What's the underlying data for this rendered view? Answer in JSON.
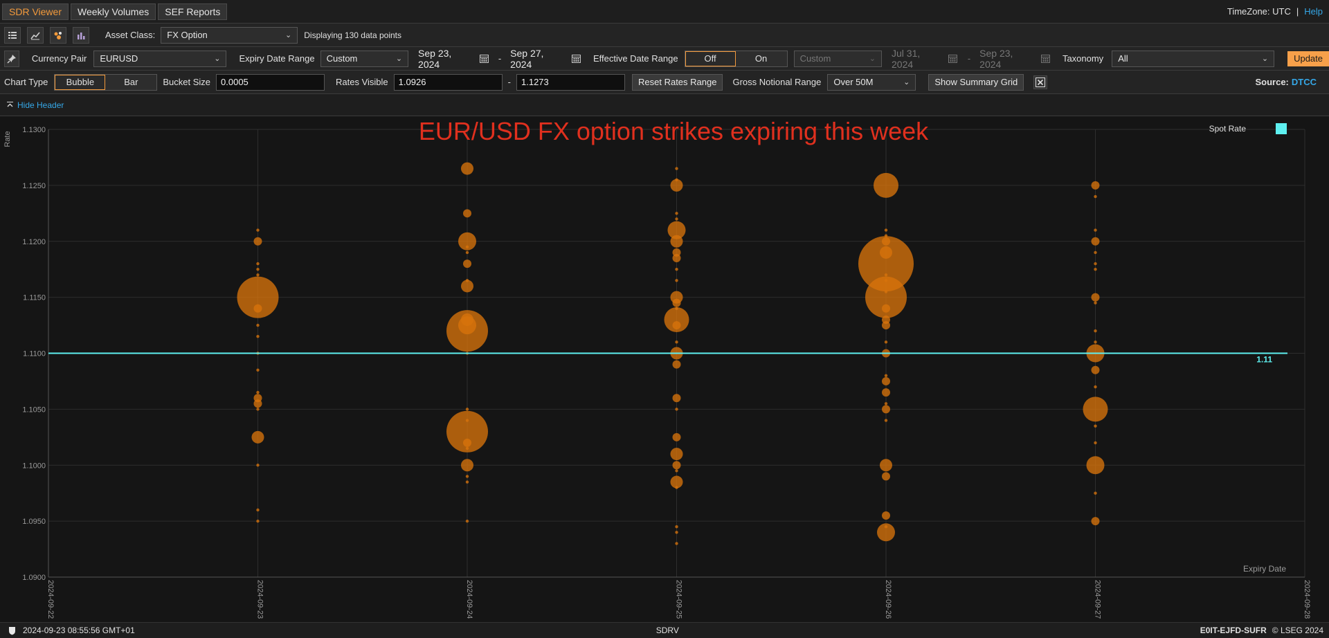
{
  "nav": {
    "tabs": [
      {
        "label": "SDR Viewer",
        "active": true
      },
      {
        "label": "Weekly Volumes",
        "active": false
      },
      {
        "label": "SEF Reports",
        "active": false
      }
    ],
    "timezone": "TimeZone: UTC",
    "separator": "|",
    "help": "Help"
  },
  "toolbar": {
    "asset_class_label": "Asset Class:",
    "asset_class_value": "FX Option",
    "displaying": "Displaying 130 data points",
    "icons": [
      "grid-icon",
      "line-chart-icon",
      "bubble-chart-icon",
      "bar-chart-icon"
    ]
  },
  "filters": {
    "currency_pair_label": "Currency Pair",
    "currency_pair_value": "EURUSD",
    "expiry_range_label": "Expiry Date Range",
    "expiry_range_value": "Custom",
    "expiry_from": "Sep 23, 2024",
    "expiry_to": "Sep 27, 2024",
    "dash": "-",
    "effective_label": "Effective Date Range",
    "effective_off": "Off",
    "effective_on": "On",
    "effective_range_value": "Custom",
    "effective_from": "Jul 31, 2024",
    "effective_to": "Sep 23, 2024",
    "taxonomy_label": "Taxonomy",
    "taxonomy_value": "All",
    "update": "Update"
  },
  "options": {
    "chart_type_label": "Chart Type",
    "bubble": "Bubble",
    "bar": "Bar",
    "bucket_size_label": "Bucket Size",
    "bucket_size_value": "0.0005",
    "rates_visible_label": "Rates Visible",
    "rates_from": "1.0926",
    "rates_to": "1.1273",
    "dash": "-",
    "reset": "Reset Rates Range",
    "gross_notional_label": "Gross Notional Range",
    "gross_notional_value": "Over 50M",
    "summary": "Show Summary Grid",
    "source_label": "Source:",
    "source_value": "DTCC"
  },
  "header_toggle": {
    "label": "Hide Header"
  },
  "footer": {
    "timestamp": "2024-09-23 08:55:56 GMT+01",
    "center": "SDRV",
    "code": "E0IT-EJFD-SUFR",
    "copyright": "© LSEG 2024"
  },
  "colors": {
    "accent": "#f39a3c",
    "bubble": "#d7730c",
    "spot": "#5ef0f0",
    "title": "#e0301e",
    "link": "#35a8e8"
  },
  "chart_data": {
    "type": "scatter",
    "title": "EUR/USD FX option strikes expiring this week",
    "ylabel": "Rate",
    "xlabel": "Expiry Date",
    "ylim": [
      1.09,
      1.13
    ],
    "yticks": [
      "1.0900",
      "1.0950",
      "1.1000",
      "1.1050",
      "1.1100",
      "1.1150",
      "1.1200",
      "1.1250",
      "1.1300"
    ],
    "xticks": [
      "2024-09-22",
      "2024-09-23",
      "2024-09-24",
      "2024-09-25",
      "2024-09-26",
      "2024-09-27",
      "2024-09-28"
    ],
    "grid": true,
    "legend": {
      "label": "Spot Rate",
      "placement": "top-right"
    },
    "spot_rate": 1.11,
    "spot_label": "1.11",
    "series": [
      {
        "x": "2024-09-23",
        "points": [
          [
            1.121,
            1
          ],
          [
            1.12,
            2
          ],
          [
            1.118,
            1
          ],
          [
            1.1175,
            1
          ],
          [
            1.117,
            1
          ],
          [
            1.115,
            6
          ],
          [
            1.114,
            2
          ],
          [
            1.1125,
            1
          ],
          [
            1.1115,
            1
          ],
          [
            1.11,
            1
          ],
          [
            1.1085,
            1
          ],
          [
            1.1065,
            1
          ],
          [
            1.106,
            2
          ],
          [
            1.1055,
            2
          ],
          [
            1.105,
            1
          ],
          [
            1.1025,
            3
          ],
          [
            1.1,
            1
          ],
          [
            1.096,
            1
          ],
          [
            1.095,
            1
          ]
        ]
      },
      {
        "x": "2024-09-24",
        "points": [
          [
            1.1265,
            3
          ],
          [
            1.1225,
            2
          ],
          [
            1.12,
            4
          ],
          [
            1.1195,
            1
          ],
          [
            1.119,
            1
          ],
          [
            1.118,
            2
          ],
          [
            1.1165,
            1
          ],
          [
            1.116,
            3
          ],
          [
            1.113,
            3
          ],
          [
            1.112,
            6
          ],
          [
            1.1125,
            4
          ],
          [
            1.11,
            1
          ],
          [
            1.105,
            1
          ],
          [
            1.104,
            1
          ],
          [
            1.103,
            6
          ],
          [
            1.102,
            2
          ],
          [
            1.1015,
            1
          ],
          [
            1.1,
            3
          ],
          [
            1.099,
            1
          ],
          [
            1.0985,
            1
          ],
          [
            1.095,
            1
          ]
        ]
      },
      {
        "x": "2024-09-25",
        "points": [
          [
            1.1265,
            1
          ],
          [
            1.1255,
            1
          ],
          [
            1.125,
            3
          ],
          [
            1.1225,
            1
          ],
          [
            1.122,
            1
          ],
          [
            1.121,
            4
          ],
          [
            1.12,
            3
          ],
          [
            1.119,
            2
          ],
          [
            1.1185,
            2
          ],
          [
            1.1175,
            1
          ],
          [
            1.1165,
            1
          ],
          [
            1.115,
            3
          ],
          [
            1.1145,
            2
          ],
          [
            1.114,
            1
          ],
          [
            1.113,
            5
          ],
          [
            1.1125,
            2
          ],
          [
            1.111,
            1
          ],
          [
            1.11,
            3
          ],
          [
            1.109,
            2
          ],
          [
            1.106,
            2
          ],
          [
            1.105,
            1
          ],
          [
            1.1025,
            2
          ],
          [
            1.101,
            3
          ],
          [
            1.1,
            2
          ],
          [
            1.0995,
            1
          ],
          [
            1.0985,
            3
          ],
          [
            1.098,
            1
          ],
          [
            1.0945,
            1
          ],
          [
            1.094,
            1
          ],
          [
            1.093,
            1
          ]
        ]
      },
      {
        "x": "2024-09-26",
        "points": [
          [
            1.125,
            5
          ],
          [
            1.121,
            1
          ],
          [
            1.1205,
            1
          ],
          [
            1.12,
            2
          ],
          [
            1.119,
            3
          ],
          [
            1.118,
            8
          ],
          [
            1.117,
            1
          ],
          [
            1.1165,
            1
          ],
          [
            1.1155,
            1
          ],
          [
            1.115,
            6
          ],
          [
            1.114,
            2
          ],
          [
            1.113,
            2
          ],
          [
            1.1125,
            2
          ],
          [
            1.111,
            1
          ],
          [
            1.11,
            2
          ],
          [
            1.108,
            1
          ],
          [
            1.1075,
            2
          ],
          [
            1.1065,
            2
          ],
          [
            1.1055,
            1
          ],
          [
            1.105,
            2
          ],
          [
            1.104,
            1
          ],
          [
            1.1,
            3
          ],
          [
            1.099,
            2
          ],
          [
            1.0955,
            2
          ],
          [
            1.0945,
            1
          ],
          [
            1.094,
            4
          ]
        ]
      },
      {
        "x": "2024-09-27",
        "points": [
          [
            1.125,
            2
          ],
          [
            1.124,
            1
          ],
          [
            1.121,
            1
          ],
          [
            1.12,
            2
          ],
          [
            1.119,
            1
          ],
          [
            1.118,
            1
          ],
          [
            1.1175,
            1
          ],
          [
            1.115,
            2
          ],
          [
            1.1145,
            1
          ],
          [
            1.112,
            1
          ],
          [
            1.111,
            1
          ],
          [
            1.11,
            4
          ],
          [
            1.1085,
            2
          ],
          [
            1.107,
            1
          ],
          [
            1.105,
            5
          ],
          [
            1.1035,
            1
          ],
          [
            1.102,
            1
          ],
          [
            1.1,
            4
          ],
          [
            1.0975,
            1
          ],
          [
            1.095,
            2
          ]
        ]
      }
    ]
  }
}
